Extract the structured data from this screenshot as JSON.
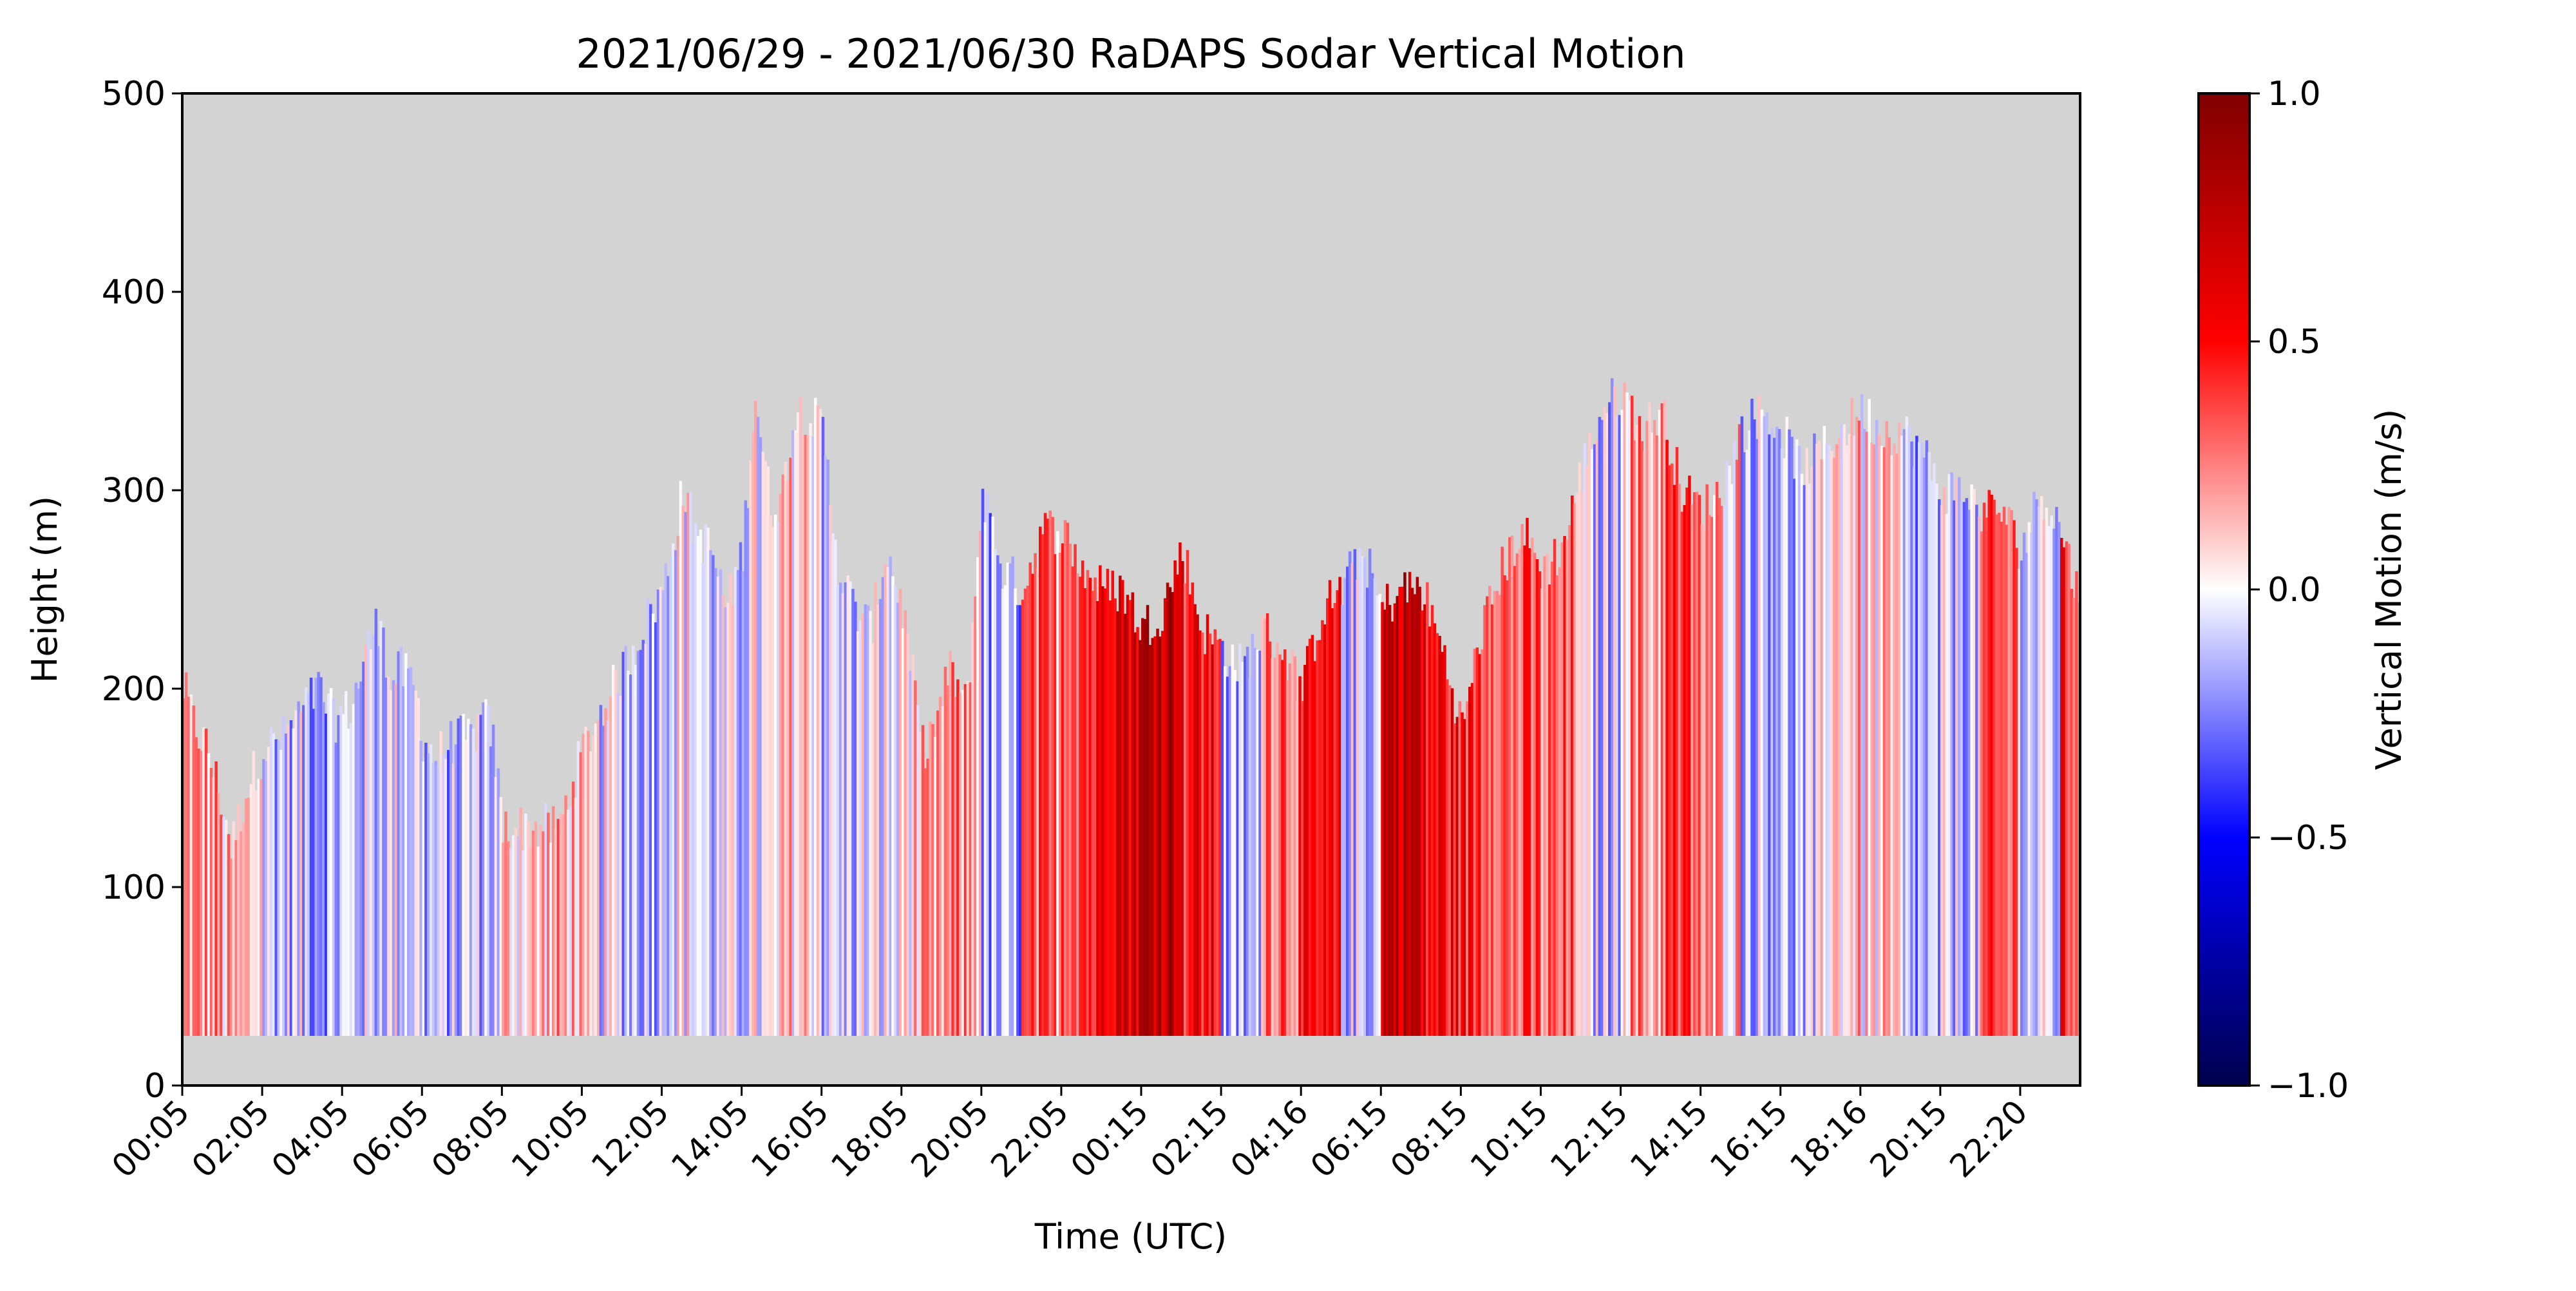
{
  "chart_data": {
    "type": "heatmap",
    "title": "2021/06/29 - 2021/06/30 RaDAPS Sodar Vertical Motion",
    "xlabel": "Time (UTC)",
    "ylabel": "Height (m)",
    "x_tick_labels": [
      "00:05",
      "02:05",
      "04:05",
      "06:05",
      "08:05",
      "10:05",
      "12:05",
      "14:05",
      "16:05",
      "18:05",
      "20:05",
      "22:05",
      "00:15",
      "02:15",
      "04:16",
      "06:15",
      "08:15",
      "10:15",
      "12:15",
      "14:15",
      "16:15",
      "18:16",
      "20:15",
      "22:20"
    ],
    "x_range_hours": [
      0,
      47.5
    ],
    "y_ticks": [
      0,
      100,
      200,
      300,
      400,
      500
    ],
    "ylim": [
      0,
      500
    ],
    "grid": false,
    "missing_color": "#d3d3d3",
    "data_min_height": 25,
    "colorbar": {
      "label": "Vertical Motion (m/s)",
      "colormap": "seismic",
      "range": [
        -1.0,
        1.0
      ],
      "ticks": [
        1.0,
        0.5,
        0.0,
        -0.5,
        -1.0
      ],
      "tick_labels": [
        "1.0",
        "0.5",
        "0.0",
        "−0.5",
        "−1.0"
      ]
    },
    "max_height_profile": {
      "hours": [
        0.0,
        0.3,
        0.6,
        1.0,
        1.2,
        1.6,
        2.0,
        2.5,
        3.0,
        3.4,
        3.6,
        3.8,
        4.2,
        4.6,
        5.0,
        5.1,
        5.4,
        5.8,
        6.0,
        6.3,
        6.8,
        7.2,
        7.5,
        7.7,
        8.0,
        8.6,
        9.4,
        10.0,
        10.5,
        11.0,
        11.5,
        12.0,
        12.5,
        12.8,
        13.2,
        13.6,
        14.0,
        14.3,
        14.7,
        15.0,
        15.3,
        15.6,
        16.0,
        16.4,
        16.8,
        17.2,
        17.6,
        18.0,
        18.5,
        18.8,
        19.2,
        19.6,
        20.0,
        20.5,
        21.0,
        21.5,
        22.0,
        22.5,
        23.0,
        23.5,
        24.0,
        24.5,
        25.0,
        25.5,
        26.0,
        26.5,
        27.0,
        27.5,
        28.0,
        28.5,
        29.0,
        29.5,
        30.0,
        30.5,
        31.0,
        31.5,
        32.0,
        32.5,
        33.0,
        33.5,
        34.0,
        34.5,
        35.0,
        35.5,
        36.0,
        36.5,
        37.0,
        37.5,
        38.0,
        38.5,
        39.0,
        39.5,
        40.0,
        40.5,
        41.0,
        41.5,
        42.0,
        42.5,
        43.0,
        43.5,
        44.0,
        44.5,
        45.0,
        45.5,
        46.0,
        46.5,
        47.0,
        47.5
      ],
      "heights": [
        200,
        180,
        170,
        140,
        120,
        150,
        170,
        175,
        190,
        200,
        190,
        185,
        190,
        220,
        240,
        200,
        210,
        200,
        175,
        165,
        175,
        175,
        185,
        180,
        130,
        130,
        130,
        170,
        190,
        210,
        230,
        250,
        300,
        280,
        270,
        240,
        270,
        350,
        290,
        300,
        340,
        340,
        330,
        260,
        240,
        230,
        270,
        240,
        170,
        180,
        210,
        190,
        300,
        260,
        250,
        280,
        280,
        260,
        250,
        250,
        230,
        240,
        270,
        230,
        220,
        210,
        230,
        220,
        200,
        240,
        250,
        270,
        240,
        250,
        250,
        220,
        180,
        230,
        260,
        280,
        260,
        270,
        310,
        340,
        350,
        330,
        340,
        300,
        290,
        300,
        330,
        340,
        330,
        310,
        320,
        330,
        340,
        330,
        330,
        320,
        300,
        300,
        290,
        290,
        270,
        300,
        280,
        240
      ]
    },
    "vertical_motion_columns": {
      "note": "representative mean vertical motion (m/s) per hour bin, hours 0..47",
      "values": [
        0.2,
        0.1,
        -0.1,
        -0.15,
        -0.1,
        -0.05,
        -0.15,
        -0.1,
        0.1,
        0.15,
        -0.05,
        -0.1,
        0.0,
        -0.1,
        -0.05,
        0.1,
        -0.1,
        -0.05,
        0.1,
        0.2,
        -0.2,
        0.25,
        0.45,
        0.7,
        0.8,
        0.5,
        -0.2,
        0.35,
        0.4,
        -0.1,
        0.75,
        0.5,
        0.45,
        0.3,
        0.25,
        -0.1,
        0.2,
        0.35,
        0.15,
        -0.1,
        -0.15,
        0.1,
        0.05,
        -0.2,
        -0.1,
        0.3,
        -0.1,
        0.4
      ]
    }
  }
}
